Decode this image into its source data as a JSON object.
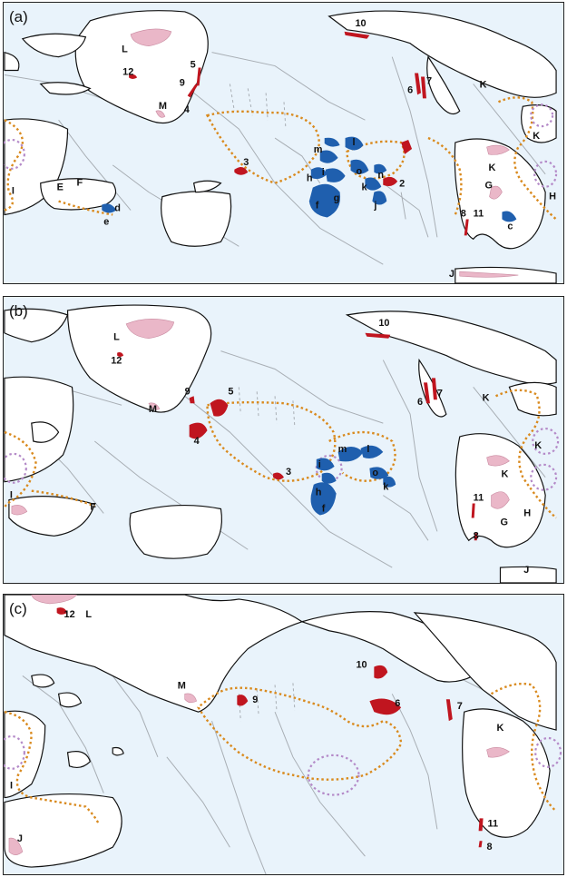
{
  "panels": [
    {
      "label": "(a)",
      "markers": [
        {
          "id": "10",
          "kind": "red"
        },
        {
          "id": "12",
          "kind": "red"
        },
        {
          "id": "5",
          "kind": "red"
        },
        {
          "id": "9",
          "kind": "red"
        },
        {
          "id": "4",
          "kind": "red"
        },
        {
          "id": "3",
          "kind": "red"
        },
        {
          "id": "6",
          "kind": "red"
        },
        {
          "id": "7",
          "kind": "red"
        },
        {
          "id": "2",
          "kind": "red"
        },
        {
          "id": "8",
          "kind": "red"
        },
        {
          "id": "11",
          "kind": "red"
        },
        {
          "id": "m",
          "kind": "blue"
        },
        {
          "id": "l",
          "kind": "blue"
        },
        {
          "id": "i",
          "kind": "blue"
        },
        {
          "id": "o",
          "kind": "blue"
        },
        {
          "id": "h",
          "kind": "blue"
        },
        {
          "id": "g",
          "kind": "blue"
        },
        {
          "id": "f",
          "kind": "blue"
        },
        {
          "id": "k",
          "kind": "blue"
        },
        {
          "id": "j",
          "kind": "blue"
        },
        {
          "id": "n",
          "kind": "blue"
        },
        {
          "id": "d",
          "kind": "blue"
        },
        {
          "id": "e",
          "kind": "blue"
        },
        {
          "id": "c",
          "kind": "blue"
        }
      ],
      "letters": [
        "L",
        "M",
        "F",
        "E",
        "I",
        "K",
        "K",
        "K",
        "G",
        "H",
        "J"
      ]
    },
    {
      "label": "(b)",
      "markers": [
        {
          "id": "10",
          "kind": "red"
        },
        {
          "id": "12",
          "kind": "red"
        },
        {
          "id": "9",
          "kind": "red"
        },
        {
          "id": "5",
          "kind": "red"
        },
        {
          "id": "4",
          "kind": "red"
        },
        {
          "id": "3",
          "kind": "red"
        },
        {
          "id": "6",
          "kind": "red"
        },
        {
          "id": "7",
          "kind": "red"
        },
        {
          "id": "11",
          "kind": "red"
        },
        {
          "id": "8",
          "kind": "red"
        },
        {
          "id": "m",
          "kind": "blue"
        },
        {
          "id": "l",
          "kind": "blue"
        },
        {
          "id": "i",
          "kind": "blue"
        },
        {
          "id": "o",
          "kind": "blue"
        },
        {
          "id": "h",
          "kind": "blue"
        },
        {
          "id": "f",
          "kind": "blue"
        },
        {
          "id": "k",
          "kind": "blue"
        }
      ],
      "letters": [
        "L",
        "M",
        "I",
        "F",
        "K",
        "K",
        "K",
        "G",
        "H",
        "J"
      ]
    },
    {
      "label": "(c)",
      "markers": [
        {
          "id": "12",
          "kind": "red"
        },
        {
          "id": "10",
          "kind": "red"
        },
        {
          "id": "9",
          "kind": "red"
        },
        {
          "id": "6",
          "kind": "red"
        },
        {
          "id": "7",
          "kind": "red"
        },
        {
          "id": "11",
          "kind": "red"
        },
        {
          "id": "8",
          "kind": "red"
        }
      ],
      "letters": [
        "L",
        "M",
        "K",
        "I",
        "J"
      ]
    }
  ],
  "colors": {
    "ocean": "#e9f3fb",
    "land": "#ffffff",
    "red_region": "#c0151f",
    "blue_region": "#1f5fae",
    "pink_area": "#eab7c8",
    "orange_boundary": "#d98a1e",
    "purple_boundary": "#b48ac8",
    "ridges": "#a8aeb4"
  }
}
